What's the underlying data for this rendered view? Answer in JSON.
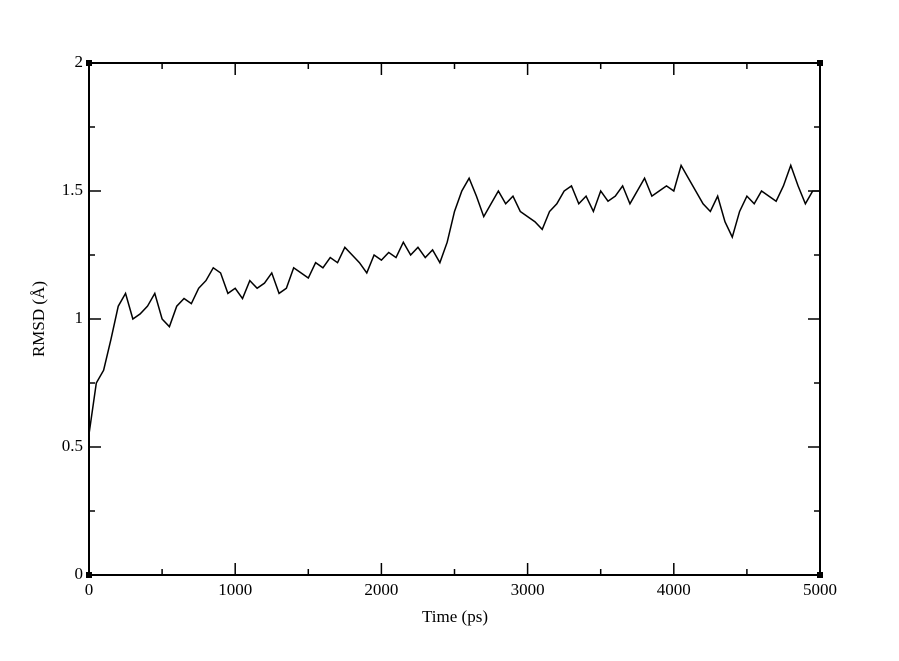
{
  "chart_data": {
    "type": "line",
    "x_label": "Time (ps)",
    "y_label": "RMSD (Å)",
    "xlim": [
      0,
      5000
    ],
    "xticks": [
      0,
      1000,
      2000,
      3000,
      4000,
      5000
    ],
    "ylim": [
      0,
      2
    ],
    "yticks": [
      0,
      0.5,
      1,
      1.5,
      2
    ],
    "grid": false,
    "series": [
      {
        "color": "#000000",
        "x": [
          0,
          50,
          100,
          150,
          200,
          250,
          300,
          350,
          400,
          450,
          500,
          550,
          600,
          650,
          700,
          750,
          800,
          850,
          900,
          950,
          1000,
          1050,
          1100,
          1150,
          1200,
          1250,
          1300,
          1350,
          1400,
          1450,
          1500,
          1550,
          1600,
          1650,
          1700,
          1750,
          1800,
          1850,
          1900,
          1950,
          2000,
          2050,
          2100,
          2150,
          2200,
          2250,
          2300,
          2350,
          2400,
          2450,
          2500,
          2550,
          2600,
          2650,
          2700,
          2750,
          2800,
          2850,
          2900,
          2950,
          3000,
          3050,
          3100,
          3150,
          3200,
          3250,
          3300,
          3350,
          3400,
          3450,
          3500,
          3550,
          3600,
          3650,
          3700,
          3750,
          3800,
          3850,
          3900,
          3950,
          4000,
          4050,
          4100,
          4150,
          4200,
          4250,
          4300,
          4350,
          4400,
          4450,
          4500,
          4550,
          4600,
          4650,
          4700,
          4750,
          4800,
          4850,
          4900,
          4950,
          5000
        ],
        "values": [
          0.55,
          0.75,
          0.8,
          0.92,
          1.05,
          1.1,
          1.0,
          1.02,
          1.05,
          1.1,
          1.0,
          0.97,
          1.05,
          1.08,
          1.06,
          1.12,
          1.15,
          1.2,
          1.18,
          1.1,
          1.12,
          1.08,
          1.15,
          1.12,
          1.14,
          1.18,
          1.1,
          1.12,
          1.2,
          1.18,
          1.16,
          1.22,
          1.2,
          1.24,
          1.22,
          1.28,
          1.25,
          1.22,
          1.18,
          1.25,
          1.23,
          1.26,
          1.24,
          1.3,
          1.25,
          1.28,
          1.24,
          1.27,
          1.22,
          1.3,
          1.42,
          1.5,
          1.55,
          1.48,
          1.4,
          1.45,
          1.5,
          1.45,
          1.48,
          1.42,
          1.4,
          1.38,
          1.35,
          1.42,
          1.45,
          1.5,
          1.52,
          1.45,
          1.48,
          1.42,
          1.5,
          1.46,
          1.48,
          1.52,
          1.45,
          1.5,
          1.55,
          1.48,
          1.5,
          1.52,
          1.5,
          1.6,
          1.55,
          1.5,
          1.45,
          1.42,
          1.48,
          1.38,
          1.32,
          1.42,
          1.48,
          1.45,
          1.5,
          1.48,
          1.46,
          1.52,
          1.6,
          1.52,
          1.45,
          1.5,
          1.5
        ]
      }
    ]
  }
}
